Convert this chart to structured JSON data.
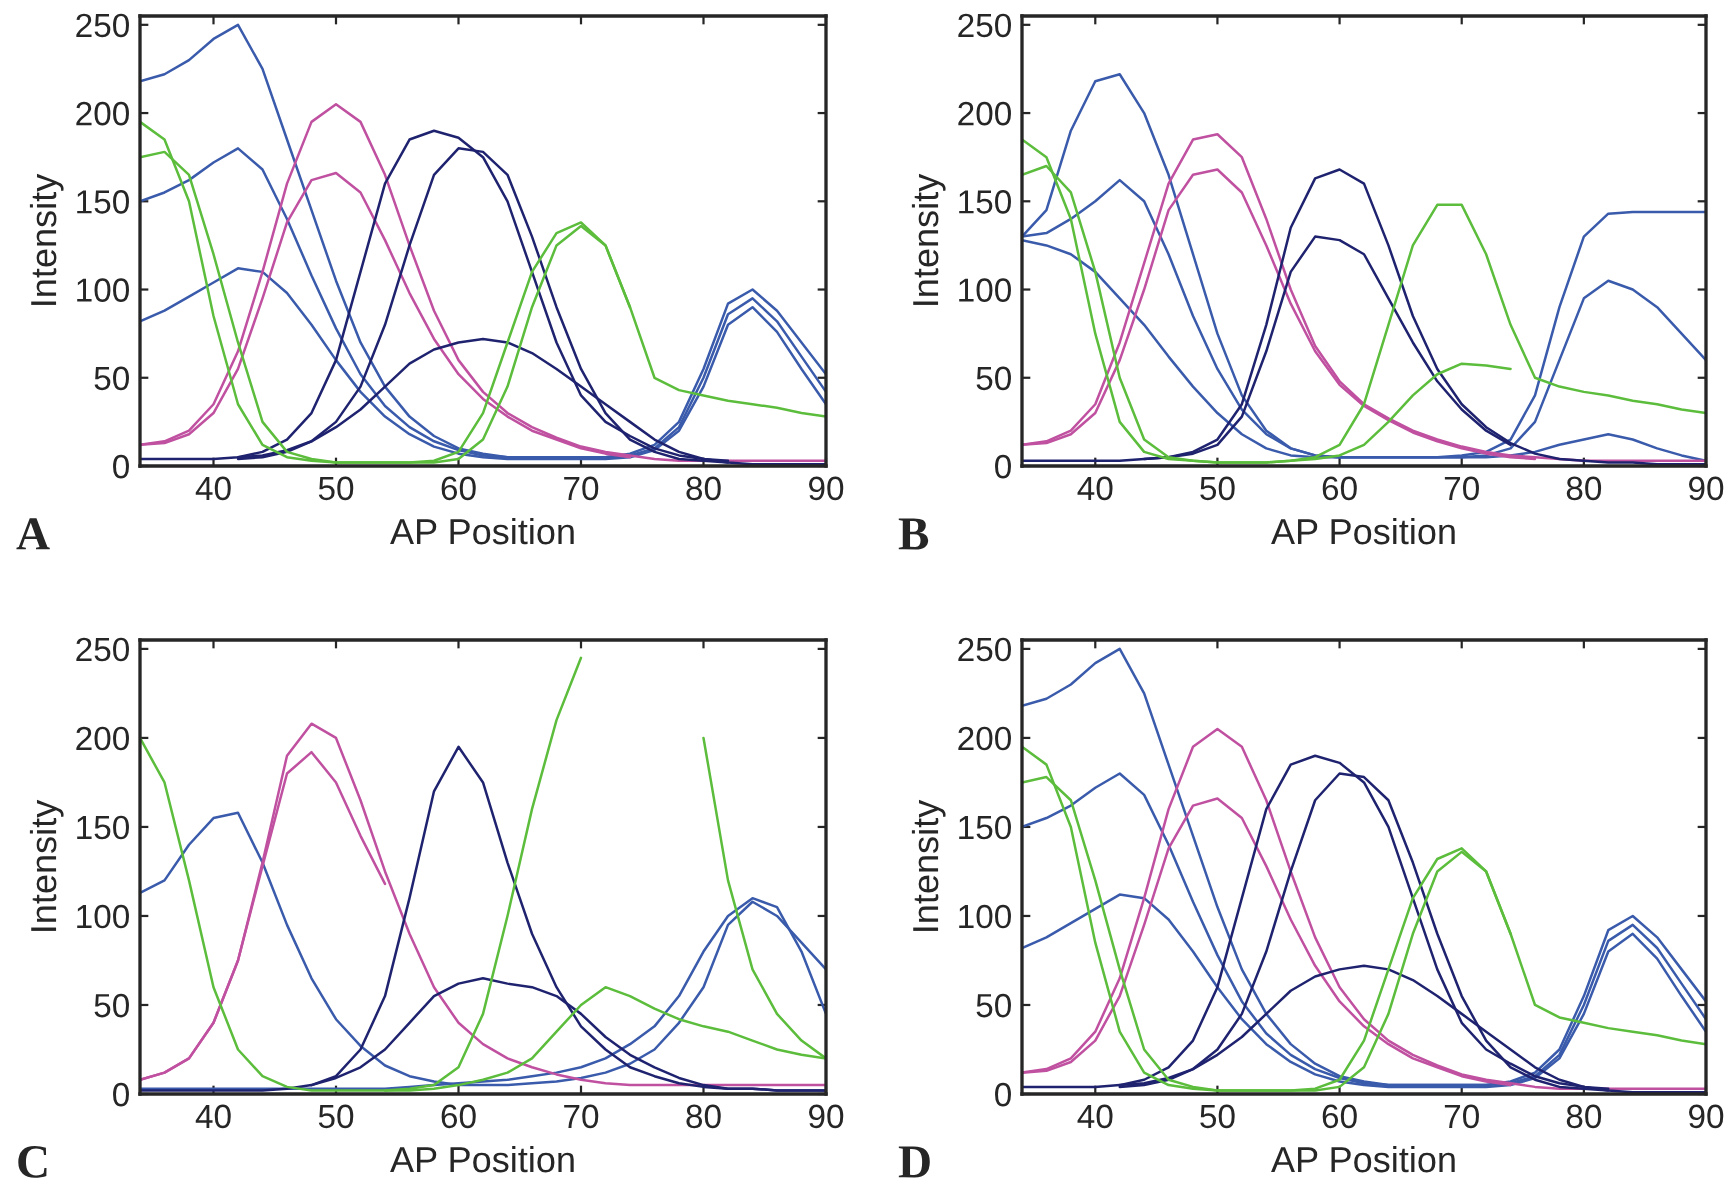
{
  "chart_data": [
    {
      "type": "line",
      "xlabel": "AP Position",
      "ylabel": "Intensity",
      "annotations": [
        "A"
      ],
      "xlim": [
        34,
        90
      ],
      "ylim": [
        0,
        255
      ],
      "xticks": [
        40,
        50,
        60,
        70,
        80,
        90
      ],
      "yticks": [
        0,
        50,
        100,
        150,
        200,
        250
      ],
      "x": [
        34,
        36,
        38,
        40,
        42,
        44,
        46,
        48,
        50,
        52,
        54,
        56,
        58,
        60,
        62,
        64,
        66,
        68,
        70,
        72,
        74,
        76,
        78,
        80,
        82,
        84,
        86,
        88,
        90
      ],
      "series": [
        {
          "color": "#3a5bab",
          "values": [
            218,
            222,
            230,
            242,
            250,
            225,
            185,
            145,
            105,
            70,
            45,
            28,
            17,
            10,
            7,
            5,
            5,
            5,
            5,
            5,
            7,
            12,
            25,
            55,
            92,
            100,
            88,
            70,
            52
          ]
        },
        {
          "color": "#3a5bab",
          "values": [
            150,
            155,
            162,
            172,
            180,
            168,
            140,
            108,
            78,
            52,
            34,
            22,
            14,
            9,
            6,
            5,
            5,
            5,
            5,
            5,
            6,
            10,
            22,
            50,
            86,
            95,
            82,
            62,
            42
          ]
        },
        {
          "color": "#3a5bab",
          "values": [
            82,
            88,
            96,
            104,
            112,
            110,
            98,
            80,
            60,
            42,
            28,
            18,
            11,
            7,
            5,
            4,
            4,
            4,
            4,
            4,
            5,
            9,
            20,
            45,
            80,
            90,
            76,
            55,
            35
          ]
        },
        {
          "color": "#c050a0",
          "values": [
            12,
            14,
            20,
            35,
            65,
            110,
            160,
            195,
            205,
            195,
            165,
            125,
            88,
            60,
            42,
            30,
            22,
            16,
            11,
            8,
            6,
            4,
            3,
            3,
            3,
            3,
            3,
            3,
            3
          ]
        },
        {
          "color": "#c050a0",
          "values": [
            12,
            13,
            18,
            30,
            55,
            95,
            138,
            162,
            166,
            155,
            128,
            98,
            72,
            52,
            38,
            28,
            20,
            15,
            10,
            7,
            5,
            null,
            null,
            null,
            null,
            null,
            null,
            null,
            null
          ]
        },
        {
          "color": "#1f236f",
          "values": [
            4,
            4,
            4,
            4,
            5,
            8,
            15,
            30,
            60,
            110,
            160,
            185,
            190,
            186,
            175,
            150,
            110,
            70,
            40,
            25,
            17,
            10,
            6,
            4,
            2,
            1,
            1,
            1,
            1
          ]
        },
        {
          "color": "#1f236f",
          "values": [
            null,
            null,
            null,
            null,
            4,
            5,
            8,
            14,
            25,
            45,
            80,
            125,
            165,
            180,
            178,
            165,
            130,
            90,
            55,
            30,
            15,
            8,
            4,
            3,
            2,
            null,
            null,
            null,
            null
          ]
        },
        {
          "color": "#1f236f",
          "values": [
            null,
            null,
            null,
            null,
            5,
            6,
            9,
            14,
            22,
            32,
            45,
            58,
            66,
            70,
            72,
            70,
            64,
            55,
            45,
            35,
            25,
            15,
            8,
            4,
            3,
            null,
            null,
            null,
            null
          ]
        },
        {
          "color": "#5cbd3c",
          "values": [
            195,
            185,
            150,
            85,
            35,
            12,
            5,
            3,
            2,
            2,
            2,
            2,
            3,
            8,
            30,
            70,
            110,
            132,
            138,
            125,
            90,
            50,
            43,
            40,
            37,
            35,
            33,
            30,
            28
          ]
        },
        {
          "color": "#5cbd3c",
          "values": [
            175,
            178,
            165,
            120,
            70,
            25,
            8,
            4,
            2,
            2,
            2,
            2,
            2,
            4,
            15,
            45,
            90,
            125,
            136,
            125,
            90,
            null,
            null,
            null,
            null,
            null,
            null,
            null,
            null
          ]
        }
      ]
    },
    {
      "type": "line",
      "xlabel": "AP Position",
      "ylabel": "Intensity",
      "annotations": [
        "B"
      ],
      "xlim": [
        34,
        90
      ],
      "ylim": [
        0,
        255
      ],
      "xticks": [
        40,
        50,
        60,
        70,
        80,
        90
      ],
      "yticks": [
        0,
        50,
        100,
        150,
        200,
        250
      ],
      "x": [
        34,
        36,
        38,
        40,
        42,
        44,
        46,
        48,
        50,
        52,
        54,
        56,
        58,
        60,
        62,
        64,
        66,
        68,
        70,
        72,
        74,
        76,
        78,
        80,
        82,
        84,
        86,
        88,
        90
      ],
      "series": [
        {
          "color": "#3a5bab",
          "values": [
            130,
            145,
            190,
            218,
            222,
            200,
            165,
            120,
            75,
            40,
            20,
            10,
            6,
            5,
            5,
            5,
            5,
            5,
            6,
            8,
            15,
            40,
            90,
            130,
            143,
            144,
            144,
            144,
            144
          ]
        },
        {
          "color": "#3a5bab",
          "values": [
            130,
            132,
            140,
            150,
            162,
            150,
            120,
            85,
            55,
            32,
            18,
            10,
            6,
            5,
            5,
            5,
            5,
            5,
            5,
            6,
            10,
            25,
            60,
            95,
            105,
            100,
            90,
            75,
            60
          ]
        },
        {
          "color": "#3a5bab",
          "values": [
            128,
            125,
            120,
            110,
            95,
            80,
            62,
            45,
            30,
            18,
            10,
            6,
            5,
            5,
            5,
            5,
            5,
            5,
            5,
            5,
            6,
            8,
            12,
            15,
            18,
            15,
            10,
            6,
            3
          ]
        },
        {
          "color": "#c050a0",
          "values": [
            12,
            14,
            20,
            35,
            70,
            115,
            160,
            185,
            188,
            175,
            140,
            100,
            68,
            48,
            35,
            27,
            20,
            15,
            11,
            8,
            6,
            5,
            4,
            3,
            3,
            3,
            3,
            3,
            3
          ]
        },
        {
          "color": "#c050a0",
          "values": [
            12,
            13,
            18,
            30,
            60,
            100,
            145,
            165,
            168,
            155,
            125,
            92,
            65,
            46,
            34,
            26,
            19,
            14,
            10,
            7,
            5,
            4,
            null,
            null,
            null,
            null,
            null,
            null,
            null
          ]
        },
        {
          "color": "#1f236f",
          "values": [
            3,
            3,
            3,
            3,
            3,
            4,
            5,
            8,
            15,
            35,
            80,
            135,
            163,
            168,
            160,
            125,
            85,
            55,
            35,
            22,
            13,
            7,
            4,
            3,
            2,
            2,
            1,
            1,
            1
          ]
        },
        {
          "color": "#1f236f",
          "values": [
            null,
            null,
            null,
            null,
            null,
            4,
            5,
            7,
            12,
            28,
            65,
            110,
            130,
            128,
            120,
            95,
            70,
            48,
            32,
            20,
            12,
            null,
            null,
            null,
            null,
            null,
            null,
            null,
            null
          ]
        },
        {
          "color": "#5cbd3c",
          "values": [
            185,
            175,
            140,
            75,
            25,
            8,
            4,
            3,
            2,
            2,
            2,
            3,
            5,
            12,
            35,
            80,
            125,
            148,
            148,
            120,
            80,
            50,
            45,
            42,
            40,
            37,
            35,
            32,
            30
          ]
        },
        {
          "color": "#5cbd3c",
          "values": [
            165,
            170,
            155,
            110,
            50,
            15,
            5,
            3,
            2,
            2,
            2,
            3,
            4,
            6,
            12,
            25,
            40,
            52,
            58,
            57,
            55,
            null,
            null,
            null,
            null,
            null,
            null,
            null,
            null
          ]
        }
      ]
    },
    {
      "type": "line",
      "xlabel": "AP Position",
      "ylabel": "Intensity",
      "annotations": [
        "C"
      ],
      "xlim": [
        34,
        90
      ],
      "ylim": [
        0,
        255
      ],
      "xticks": [
        40,
        50,
        60,
        70,
        80,
        90
      ],
      "yticks": [
        0,
        50,
        100,
        150,
        200,
        250
      ],
      "x": [
        34,
        36,
        38,
        40,
        42,
        44,
        46,
        48,
        50,
        52,
        54,
        56,
        58,
        60,
        62,
        64,
        66,
        68,
        70,
        72,
        74,
        76,
        78,
        80,
        82,
        84,
        86,
        88,
        90
      ],
      "series": [
        {
          "color": "#3a5bab",
          "values": [
            113,
            120,
            140,
            155,
            158,
            130,
            95,
            65,
            42,
            27,
            16,
            10,
            7,
            5,
            5,
            5,
            6,
            7,
            9,
            12,
            17,
            25,
            40,
            60,
            95,
            108,
            100,
            85,
            70
          ]
        },
        {
          "color": "#3a5bab",
          "values": [
            3,
            3,
            3,
            3,
            3,
            3,
            3,
            3,
            3,
            3,
            3,
            4,
            5,
            6,
            7,
            8,
            10,
            12,
            15,
            20,
            28,
            38,
            55,
            80,
            100,
            110,
            105,
            80,
            45
          ]
        },
        {
          "color": "#c050a0",
          "values": [
            8,
            12,
            20,
            40,
            75,
            130,
            190,
            208,
            200,
            165,
            125,
            90,
            60,
            40,
            28,
            20,
            15,
            11,
            8,
            6,
            5,
            5,
            5,
            5,
            5,
            5,
            5,
            5,
            5
          ]
        },
        {
          "color": "#c050a0",
          "values": [
            8,
            12,
            20,
            40,
            75,
            128,
            180,
            192,
            175,
            145,
            118,
            null,
            null,
            null,
            null,
            null,
            null,
            null,
            null,
            null,
            null,
            null,
            null,
            null,
            null,
            null,
            null,
            null,
            null
          ]
        },
        {
          "color": "#1f236f",
          "values": [
            2,
            2,
            2,
            2,
            2,
            2,
            3,
            5,
            10,
            25,
            55,
            110,
            170,
            195,
            175,
            130,
            90,
            60,
            38,
            25,
            15,
            10,
            6,
            4,
            3,
            3,
            2,
            2,
            2
          ]
        },
        {
          "color": "#1f236f",
          "values": [
            null,
            null,
            null,
            null,
            null,
            null,
            null,
            5,
            9,
            15,
            25,
            40,
            55,
            62,
            65,
            62,
            60,
            55,
            45,
            32,
            22,
            15,
            9,
            5,
            3,
            3,
            2,
            2,
            2
          ]
        },
        {
          "color": "#5cbd3c",
          "values": [
            200,
            175,
            120,
            60,
            25,
            10,
            4,
            2,
            2,
            2,
            2,
            3,
            5,
            15,
            45,
            100,
            160,
            210,
            245,
            null,
            null,
            null,
            null,
            200,
            120,
            70,
            45,
            30,
            20
          ]
        },
        {
          "color": "#5cbd3c",
          "values": [
            null,
            null,
            null,
            null,
            null,
            null,
            null,
            null,
            null,
            null,
            2,
            2,
            3,
            5,
            8,
            12,
            20,
            35,
            50,
            60,
            55,
            48,
            42,
            38,
            35,
            30,
            25,
            22,
            20
          ]
        }
      ]
    },
    {
      "type": "line",
      "xlabel": "AP Position",
      "ylabel": "Intensity",
      "annotations": [
        "D"
      ],
      "xlim": [
        34,
        90
      ],
      "ylim": [
        0,
        255
      ],
      "xticks": [
        40,
        50,
        60,
        70,
        80,
        90
      ],
      "yticks": [
        0,
        50,
        100,
        150,
        200,
        250
      ],
      "x": [
        34,
        36,
        38,
        40,
        42,
        44,
        46,
        48,
        50,
        52,
        54,
        56,
        58,
        60,
        62,
        64,
        66,
        68,
        70,
        72,
        74,
        76,
        78,
        80,
        82,
        84,
        86,
        88,
        90
      ],
      "series": [
        {
          "color": "#3a5bab",
          "values": [
            218,
            222,
            230,
            242,
            250,
            225,
            185,
            145,
            105,
            70,
            45,
            28,
            17,
            10,
            7,
            5,
            5,
            5,
            5,
            5,
            7,
            12,
            25,
            55,
            92,
            100,
            88,
            70,
            52
          ]
        },
        {
          "color": "#3a5bab",
          "values": [
            150,
            155,
            162,
            172,
            180,
            168,
            140,
            108,
            78,
            52,
            34,
            22,
            14,
            9,
            6,
            5,
            5,
            5,
            5,
            5,
            6,
            10,
            22,
            50,
            86,
            95,
            82,
            62,
            42
          ]
        },
        {
          "color": "#3a5bab",
          "values": [
            82,
            88,
            96,
            104,
            112,
            110,
            98,
            80,
            60,
            42,
            28,
            18,
            11,
            7,
            5,
            4,
            4,
            4,
            4,
            4,
            5,
            9,
            20,
            45,
            80,
            90,
            76,
            55,
            35
          ]
        },
        {
          "color": "#c050a0",
          "values": [
            12,
            14,
            20,
            35,
            65,
            110,
            160,
            195,
            205,
            195,
            165,
            125,
            88,
            60,
            42,
            30,
            22,
            16,
            11,
            8,
            6,
            4,
            3,
            3,
            3,
            3,
            3,
            3,
            3
          ]
        },
        {
          "color": "#c050a0",
          "values": [
            12,
            13,
            18,
            30,
            55,
            95,
            138,
            162,
            166,
            155,
            128,
            98,
            72,
            52,
            38,
            28,
            20,
            15,
            10,
            7,
            5,
            null,
            null,
            null,
            null,
            null,
            null,
            null,
            null
          ]
        },
        {
          "color": "#1f236f",
          "values": [
            4,
            4,
            4,
            4,
            5,
            8,
            15,
            30,
            60,
            110,
            160,
            185,
            190,
            186,
            175,
            150,
            110,
            70,
            40,
            25,
            17,
            10,
            6,
            4,
            2,
            1,
            1,
            1,
            1
          ]
        },
        {
          "color": "#1f236f",
          "values": [
            null,
            null,
            null,
            null,
            4,
            5,
            8,
            14,
            25,
            45,
            80,
            125,
            165,
            180,
            178,
            165,
            130,
            90,
            55,
            30,
            15,
            8,
            4,
            3,
            2,
            null,
            null,
            null,
            null
          ]
        },
        {
          "color": "#1f236f",
          "values": [
            null,
            null,
            null,
            null,
            5,
            6,
            9,
            14,
            22,
            32,
            45,
            58,
            66,
            70,
            72,
            70,
            64,
            55,
            45,
            35,
            25,
            15,
            8,
            4,
            3,
            null,
            null,
            null,
            null
          ]
        },
        {
          "color": "#5cbd3c",
          "values": [
            195,
            185,
            150,
            85,
            35,
            12,
            5,
            3,
            2,
            2,
            2,
            2,
            3,
            8,
            30,
            70,
            110,
            132,
            138,
            125,
            90,
            50,
            43,
            40,
            37,
            35,
            33,
            30,
            28
          ]
        },
        {
          "color": "#5cbd3c",
          "values": [
            175,
            178,
            165,
            120,
            70,
            25,
            8,
            4,
            2,
            2,
            2,
            2,
            2,
            4,
            15,
            45,
            90,
            125,
            136,
            125,
            90,
            null,
            null,
            null,
            null,
            null,
            null,
            null,
            null
          ]
        }
      ]
    }
  ]
}
